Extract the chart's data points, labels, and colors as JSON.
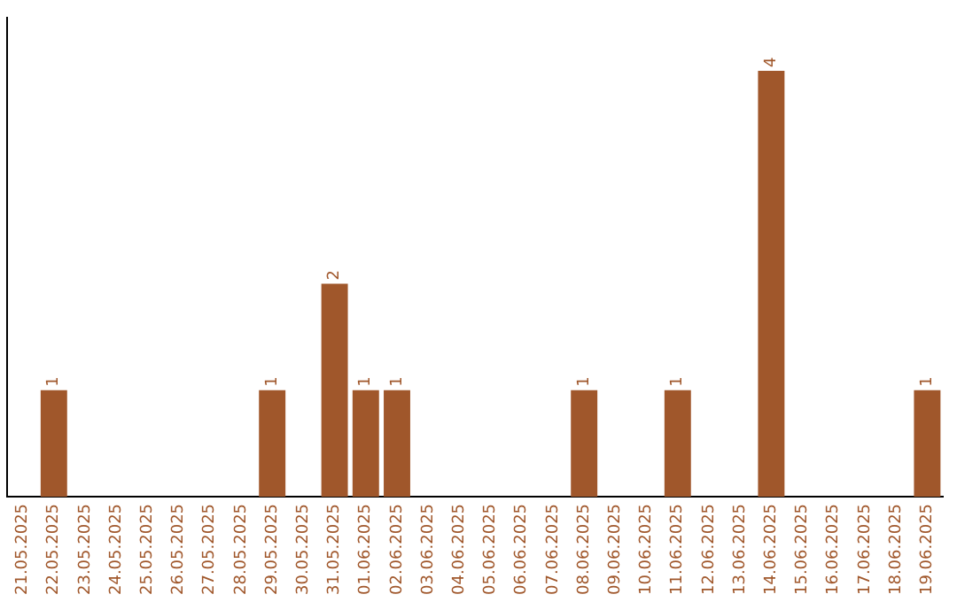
{
  "chart_data": {
    "type": "bar",
    "categories": [
      "21.05.2025",
      "22.05.2025",
      "23.05.2025",
      "24.05.2025",
      "25.05.2025",
      "26.05.2025",
      "27.05.2025",
      "28.05.2025",
      "29.05.2025",
      "30.05.2025",
      "31.05.2025",
      "01.06.2025",
      "02.06.2025",
      "03.06.2025",
      "04.06.2025",
      "05.06.2025",
      "06.06.2025",
      "07.06.2025",
      "08.06.2025",
      "09.06.2025",
      "10.06.2025",
      "11.06.2025",
      "12.06.2025",
      "13.06.2025",
      "14.06.2025",
      "15.06.2025",
      "16.06.2025",
      "17.06.2025",
      "18.06.2025",
      "19.06.2025"
    ],
    "values": [
      0,
      1,
      0,
      0,
      0,
      0,
      0,
      0,
      1,
      0,
      2,
      1,
      1,
      0,
      0,
      0,
      0,
      0,
      1,
      0,
      0,
      1,
      0,
      0,
      4,
      0,
      0,
      0,
      0,
      1
    ],
    "value_labels": [
      null,
      "1",
      null,
      null,
      null,
      null,
      null,
      null,
      "1",
      null,
      "2",
      "1",
      "1",
      null,
      null,
      null,
      null,
      null,
      "1",
      null,
      null,
      "1",
      null,
      null,
      "4",
      null,
      null,
      null,
      null,
      "1"
    ],
    "color": "#a0572b",
    "tick_labels": "x",
    "grid": false
  }
}
